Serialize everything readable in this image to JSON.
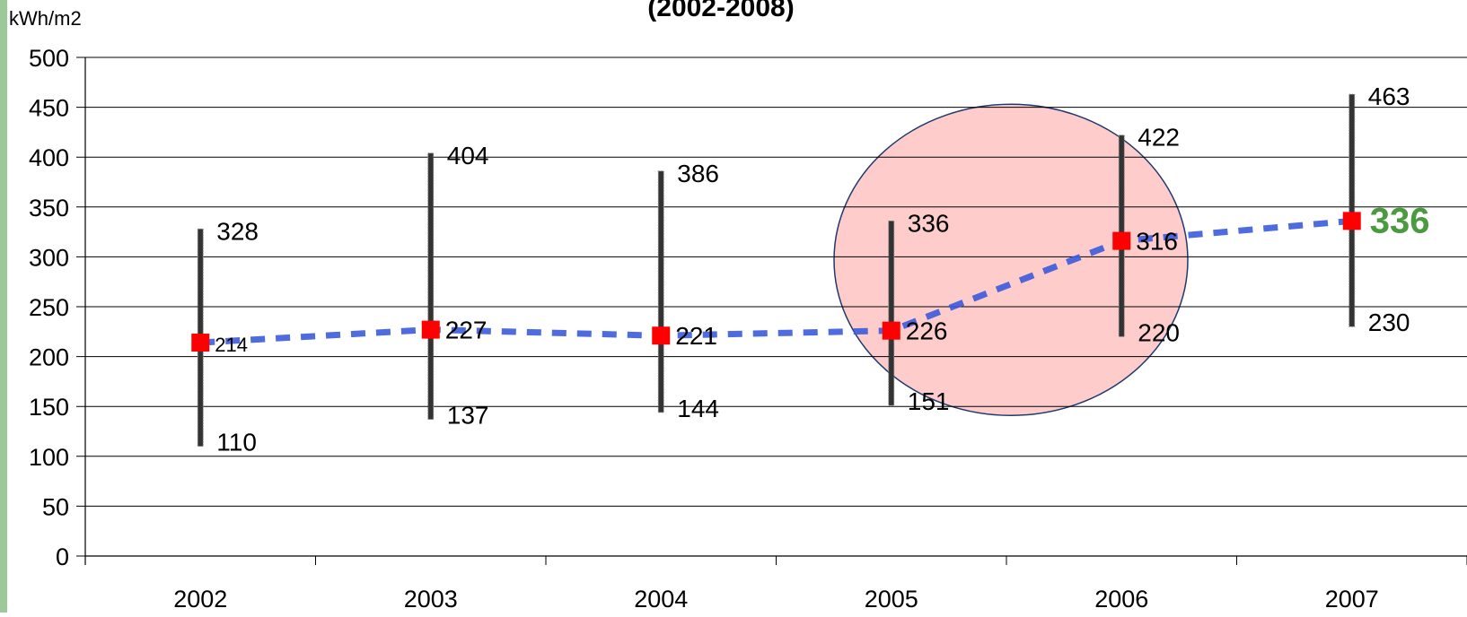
{
  "colors": {
    "accent_stripe": "#9dc89a",
    "whisker": "#333333",
    "marker": "#ff0000",
    "trend_line": "#3b5bdb",
    "highlight_fill": "#ffcccc",
    "highlight_stroke": "#1f3a6e",
    "emphasis_label": "#4a9a3f"
  },
  "chart_data": {
    "type": "line",
    "title": "(2002-2008)",
    "ylabel": "kWh/m2",
    "xlabel": "",
    "categories": [
      "2002",
      "2003",
      "2004",
      "2005",
      "2006",
      "2007"
    ],
    "ylim": [
      0,
      500
    ],
    "yticks": [
      0,
      50,
      100,
      150,
      200,
      250,
      300,
      350,
      400,
      450,
      500
    ],
    "grid": true,
    "legend": "none",
    "series": [
      {
        "values": [
          214,
          227,
          221,
          226,
          316,
          336
        ]
      }
    ],
    "ranges": [
      {
        "min": 110,
        "max": 328
      },
      {
        "min": 137,
        "max": 404
      },
      {
        "min": 144,
        "max": 386
      },
      {
        "min": 151,
        "max": 336
      },
      {
        "min": 220,
        "max": 422
      },
      {
        "min": 230,
        "max": 463
      }
    ],
    "highlight": {
      "shape": "ellipse",
      "covers_categories": [
        "2005",
        "2006"
      ]
    },
    "emphasized_label": "336"
  }
}
